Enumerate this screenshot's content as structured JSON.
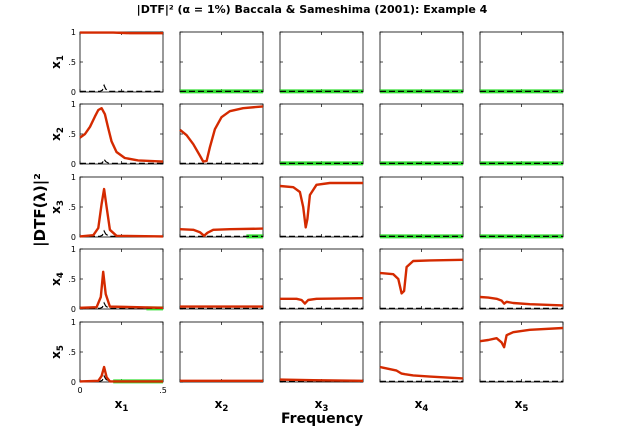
{
  "chart_data": {
    "type": "line",
    "title": "|DTF|² (α = 1%) Baccala & Sameshima (2001): Example 4",
    "xlabel": "Frequency",
    "ylabel": "|DTF(λ)|²",
    "xlim": [
      0,
      0.5
    ],
    "ylim": [
      0,
      1
    ],
    "x_tick_labels": [
      "0",
      ".5"
    ],
    "y_tick_labels": [
      "0",
      ".5",
      "1"
    ],
    "row_labels": [
      "x1",
      "x2",
      "x3",
      "x4",
      "x5"
    ],
    "col_labels": [
      "x1",
      "x2",
      "x3",
      "x4",
      "x5"
    ],
    "colors": {
      "dtf": "#d42a00",
      "threshold": "#000000",
      "nonsignificant": "#33dd33"
    },
    "line_styles": {
      "dtf": "solid",
      "threshold": "dashed",
      "nonsignificant": "solid"
    },
    "panels": [
      {
        "row": 1,
        "col": 1,
        "dtf": [
          [
            0,
            0.99
          ],
          [
            0.1,
            0.99
          ],
          [
            0.2,
            0.99
          ],
          [
            0.3,
            0.98
          ],
          [
            0.4,
            0.98
          ],
          [
            0.5,
            0.98
          ]
        ],
        "threshold": [
          [
            0,
            0.01
          ],
          [
            0.12,
            0.01
          ],
          [
            0.135,
            0.03
          ],
          [
            0.145,
            0.11
          ],
          [
            0.155,
            0.05
          ],
          [
            0.175,
            0.01
          ],
          [
            0.5,
            0.01
          ]
        ],
        "green": null
      },
      {
        "row": 1,
        "col": 2,
        "dtf": null,
        "threshold": [
          [
            0,
            0.01
          ],
          [
            0.5,
            0.01
          ]
        ],
        "green": [
          0,
          0.5
        ]
      },
      {
        "row": 1,
        "col": 3,
        "dtf": null,
        "threshold": [
          [
            0,
            0.01
          ],
          [
            0.5,
            0.01
          ]
        ],
        "green": [
          0,
          0.5
        ]
      },
      {
        "row": 1,
        "col": 4,
        "dtf": null,
        "threshold": [
          [
            0,
            0.01
          ],
          [
            0.5,
            0.01
          ]
        ],
        "green": [
          0,
          0.5
        ]
      },
      {
        "row": 1,
        "col": 5,
        "dtf": null,
        "threshold": [
          [
            0,
            0.01
          ],
          [
            0.5,
            0.01
          ]
        ],
        "green": [
          0,
          0.5
        ]
      },
      {
        "row": 2,
        "col": 1,
        "dtf": [
          [
            0,
            0.44
          ],
          [
            0.03,
            0.5
          ],
          [
            0.06,
            0.62
          ],
          [
            0.09,
            0.79
          ],
          [
            0.11,
            0.9
          ],
          [
            0.13,
            0.93
          ],
          [
            0.15,
            0.83
          ],
          [
            0.17,
            0.6
          ],
          [
            0.19,
            0.38
          ],
          [
            0.22,
            0.2
          ],
          [
            0.27,
            0.1
          ],
          [
            0.35,
            0.06
          ],
          [
            0.5,
            0.04
          ]
        ],
        "threshold": [
          [
            0,
            0.01
          ],
          [
            0.12,
            0.01
          ],
          [
            0.135,
            0.02
          ],
          [
            0.145,
            0.08
          ],
          [
            0.155,
            0.04
          ],
          [
            0.175,
            0.01
          ],
          [
            0.5,
            0.01
          ]
        ],
        "green": null
      },
      {
        "row": 2,
        "col": 2,
        "dtf": [
          [
            0,
            0.57
          ],
          [
            0.04,
            0.48
          ],
          [
            0.08,
            0.33
          ],
          [
            0.12,
            0.14
          ],
          [
            0.14,
            0.04
          ],
          [
            0.16,
            0.05
          ],
          [
            0.18,
            0.28
          ],
          [
            0.21,
            0.58
          ],
          [
            0.25,
            0.78
          ],
          [
            0.3,
            0.88
          ],
          [
            0.38,
            0.93
          ],
          [
            0.5,
            0.96
          ]
        ],
        "threshold": [
          [
            0,
            0.01
          ],
          [
            0.5,
            0.01
          ]
        ],
        "green": null
      },
      {
        "row": 2,
        "col": 3,
        "dtf": null,
        "threshold": [
          [
            0,
            0.01
          ],
          [
            0.5,
            0.01
          ]
        ],
        "green": [
          0,
          0.5
        ]
      },
      {
        "row": 2,
        "col": 4,
        "dtf": null,
        "threshold": [
          [
            0,
            0.01
          ],
          [
            0.5,
            0.01
          ]
        ],
        "green": [
          0,
          0.5
        ]
      },
      {
        "row": 2,
        "col": 5,
        "dtf": null,
        "threshold": [
          [
            0,
            0.01
          ],
          [
            0.5,
            0.01
          ]
        ],
        "green": [
          0,
          0.5
        ]
      },
      {
        "row": 3,
        "col": 1,
        "dtf": [
          [
            0,
            0.01
          ],
          [
            0.08,
            0.03
          ],
          [
            0.11,
            0.15
          ],
          [
            0.13,
            0.55
          ],
          [
            0.145,
            0.8
          ],
          [
            0.16,
            0.5
          ],
          [
            0.18,
            0.12
          ],
          [
            0.22,
            0.02
          ],
          [
            0.5,
            0.01
          ]
        ],
        "threshold": [
          [
            0,
            0.01
          ],
          [
            0.12,
            0.01
          ],
          [
            0.135,
            0.03
          ],
          [
            0.145,
            0.1
          ],
          [
            0.155,
            0.05
          ],
          [
            0.175,
            0.01
          ],
          [
            0.5,
            0.01
          ]
        ],
        "green": null
      },
      {
        "row": 3,
        "col": 2,
        "dtf": [
          [
            0,
            0.13
          ],
          [
            0.08,
            0.12
          ],
          [
            0.12,
            0.08
          ],
          [
            0.145,
            0.02
          ],
          [
            0.165,
            0.07
          ],
          [
            0.2,
            0.12
          ],
          [
            0.3,
            0.13
          ],
          [
            0.5,
            0.14
          ]
        ],
        "threshold": [
          [
            0,
            0.01
          ],
          [
            0.5,
            0.01
          ]
        ],
        "green": [
          0.4,
          0.5
        ]
      },
      {
        "row": 3,
        "col": 3,
        "dtf": [
          [
            0,
            0.85
          ],
          [
            0.08,
            0.83
          ],
          [
            0.12,
            0.75
          ],
          [
            0.14,
            0.5
          ],
          [
            0.155,
            0.16
          ],
          [
            0.165,
            0.3
          ],
          [
            0.18,
            0.7
          ],
          [
            0.22,
            0.87
          ],
          [
            0.3,
            0.9
          ],
          [
            0.5,
            0.9
          ]
        ],
        "threshold": [
          [
            0,
            0.01
          ],
          [
            0.5,
            0.01
          ]
        ],
        "green": null
      },
      {
        "row": 3,
        "col": 4,
        "dtf": null,
        "threshold": [
          [
            0,
            0.01
          ],
          [
            0.5,
            0.01
          ]
        ],
        "green": [
          0,
          0.5
        ]
      },
      {
        "row": 3,
        "col": 5,
        "dtf": null,
        "threshold": [
          [
            0,
            0.01
          ],
          [
            0.5,
            0.01
          ]
        ],
        "green": [
          0,
          0.5
        ]
      },
      {
        "row": 4,
        "col": 1,
        "dtf": [
          [
            0,
            0.02
          ],
          [
            0.1,
            0.03
          ],
          [
            0.125,
            0.2
          ],
          [
            0.14,
            0.62
          ],
          [
            0.155,
            0.25
          ],
          [
            0.18,
            0.04
          ],
          [
            0.5,
            0.02
          ]
        ],
        "threshold": [
          [
            0,
            0.01
          ],
          [
            0.12,
            0.01
          ],
          [
            0.135,
            0.03
          ],
          [
            0.145,
            0.1
          ],
          [
            0.155,
            0.05
          ],
          [
            0.175,
            0.01
          ],
          [
            0.5,
            0.01
          ]
        ],
        "green": [
          0.4,
          0.5
        ]
      },
      {
        "row": 4,
        "col": 2,
        "dtf": [
          [
            0,
            0.04
          ],
          [
            0.25,
            0.04
          ],
          [
            0.5,
            0.04
          ]
        ],
        "threshold": [
          [
            0,
            0.01
          ],
          [
            0.5,
            0.01
          ]
        ],
        "green": null
      },
      {
        "row": 4,
        "col": 3,
        "dtf": [
          [
            0,
            0.17
          ],
          [
            0.1,
            0.17
          ],
          [
            0.13,
            0.15
          ],
          [
            0.15,
            0.09
          ],
          [
            0.17,
            0.15
          ],
          [
            0.22,
            0.17
          ],
          [
            0.5,
            0.18
          ]
        ],
        "threshold": [
          [
            0,
            0.01
          ],
          [
            0.5,
            0.01
          ]
        ],
        "green": null
      },
      {
        "row": 4,
        "col": 4,
        "dtf": [
          [
            0,
            0.6
          ],
          [
            0.08,
            0.58
          ],
          [
            0.11,
            0.5
          ],
          [
            0.13,
            0.26
          ],
          [
            0.145,
            0.3
          ],
          [
            0.16,
            0.7
          ],
          [
            0.2,
            0.8
          ],
          [
            0.3,
            0.81
          ],
          [
            0.5,
            0.82
          ]
        ],
        "threshold": [
          [
            0,
            0.01
          ],
          [
            0.5,
            0.01
          ]
        ],
        "green": null
      },
      {
        "row": 4,
        "col": 5,
        "dtf": [
          [
            0,
            0.2
          ],
          [
            0.05,
            0.19
          ],
          [
            0.1,
            0.17
          ],
          [
            0.13,
            0.14
          ],
          [
            0.145,
            0.09
          ],
          [
            0.16,
            0.12
          ],
          [
            0.2,
            0.1
          ],
          [
            0.3,
            0.08
          ],
          [
            0.5,
            0.06
          ]
        ],
        "threshold": [
          [
            0,
            0.01
          ],
          [
            0.5,
            0.01
          ]
        ],
        "green": null
      },
      {
        "row": 5,
        "col": 1,
        "dtf": [
          [
            0,
            0.01
          ],
          [
            0.11,
            0.02
          ],
          [
            0.13,
            0.1
          ],
          [
            0.145,
            0.25
          ],
          [
            0.16,
            0.08
          ],
          [
            0.18,
            0.01
          ],
          [
            0.5,
            0.01
          ]
        ],
        "threshold": [
          [
            0,
            0.01
          ],
          [
            0.12,
            0.01
          ],
          [
            0.135,
            0.03
          ],
          [
            0.145,
            0.1
          ],
          [
            0.155,
            0.05
          ],
          [
            0.175,
            0.01
          ],
          [
            0.5,
            0.01
          ]
        ],
        "green": [
          0.2,
          0.5
        ]
      },
      {
        "row": 5,
        "col": 2,
        "dtf": [
          [
            0,
            0.02
          ],
          [
            0.25,
            0.02
          ],
          [
            0.5,
            0.02
          ]
        ],
        "threshold": [
          [
            0,
            0.01
          ],
          [
            0.5,
            0.01
          ]
        ],
        "green": null
      },
      {
        "row": 5,
        "col": 3,
        "dtf": [
          [
            0,
            0.04
          ],
          [
            0.2,
            0.03
          ],
          [
            0.5,
            0.02
          ]
        ],
        "threshold": [
          [
            0,
            0.01
          ],
          [
            0.5,
            0.01
          ]
        ],
        "green": null
      },
      {
        "row": 5,
        "col": 4,
        "dtf": [
          [
            0,
            0.25
          ],
          [
            0.1,
            0.19
          ],
          [
            0.13,
            0.14
          ],
          [
            0.15,
            0.13
          ],
          [
            0.2,
            0.11
          ],
          [
            0.3,
            0.09
          ],
          [
            0.5,
            0.06
          ]
        ],
        "threshold": [
          [
            0,
            0.01
          ],
          [
            0.5,
            0.01
          ]
        ],
        "green": null
      },
      {
        "row": 5,
        "col": 5,
        "dtf": [
          [
            0,
            0.68
          ],
          [
            0.05,
            0.7
          ],
          [
            0.1,
            0.73
          ],
          [
            0.13,
            0.66
          ],
          [
            0.145,
            0.58
          ],
          [
            0.16,
            0.78
          ],
          [
            0.2,
            0.83
          ],
          [
            0.3,
            0.87
          ],
          [
            0.5,
            0.9
          ]
        ],
        "threshold": [
          [
            0,
            0.01
          ],
          [
            0.5,
            0.01
          ]
        ],
        "green": null
      }
    ]
  }
}
